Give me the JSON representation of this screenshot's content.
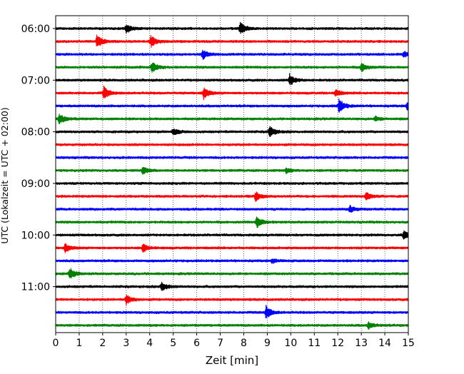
{
  "chart_data": {
    "type": "line",
    "title": "",
    "xlabel": "Zeit  [min]",
    "ylabel": "UTC (Lokalzeit = UTC + 02:00)",
    "xlim": [
      0,
      15
    ],
    "x_ticks": [
      0,
      1,
      2,
      3,
      4,
      5,
      6,
      7,
      8,
      9,
      10,
      11,
      12,
      13,
      14,
      15
    ],
    "x_tick_labels": [
      "0",
      "1",
      "2",
      "3",
      "4",
      "5",
      "6",
      "7",
      "8",
      "9",
      "10",
      "11",
      "12",
      "13",
      "14",
      "15"
    ],
    "y_tick_labels": [
      "06:00",
      "07:00",
      "08:00",
      "09:00",
      "10:00",
      "11:00"
    ],
    "vertical_grid": true,
    "grid_style": "dotted",
    "trace_minutes": 15,
    "trace_colors": [
      "#000000",
      "#ff0000",
      "#0000ff",
      "#008000"
    ],
    "traces": [
      {
        "start": "06:00",
        "events": [
          {
            "x": 3.0,
            "a": 7
          },
          {
            "x": 7.85,
            "a": 9
          }
        ]
      },
      {
        "start": "06:15",
        "events": [
          {
            "x": 1.75,
            "a": 10
          },
          {
            "x": 4.05,
            "a": 8
          }
        ]
      },
      {
        "start": "06:30",
        "events": [
          {
            "x": 6.25,
            "a": 7
          },
          {
            "x": 14.8,
            "a": 4
          }
        ]
      },
      {
        "start": "06:45",
        "events": [
          {
            "x": 4.1,
            "a": 8
          },
          {
            "x": 13.0,
            "a": 6
          }
        ]
      },
      {
        "start": "07:00",
        "events": [
          {
            "x": 9.95,
            "a": 8
          }
        ]
      },
      {
        "start": "07:15",
        "events": [
          {
            "x": 2.05,
            "a": 9
          },
          {
            "x": 6.3,
            "a": 8
          },
          {
            "x": 11.9,
            "a": 5
          }
        ]
      },
      {
        "start": "07:30",
        "events": [
          {
            "x": 12.05,
            "a": 10
          },
          {
            "x": 14.95,
            "a": 6
          }
        ]
      },
      {
        "start": "07:45",
        "events": [
          {
            "x": 0.15,
            "a": 8
          },
          {
            "x": 13.6,
            "a": 3
          }
        ]
      },
      {
        "start": "08:00",
        "events": [
          {
            "x": 5.0,
            "a": 5
          },
          {
            "x": 9.1,
            "a": 8
          }
        ]
      },
      {
        "start": "08:15",
        "events": []
      },
      {
        "start": "08:30",
        "events": []
      },
      {
        "start": "08:45",
        "events": [
          {
            "x": 3.7,
            "a": 5
          },
          {
            "x": 9.8,
            "a": 3
          }
        ]
      },
      {
        "start": "09:00",
        "events": []
      },
      {
        "start": "09:15",
        "events": [
          {
            "x": 8.5,
            "a": 6
          },
          {
            "x": 13.2,
            "a": 6
          }
        ]
      },
      {
        "start": "09:30",
        "events": [
          {
            "x": 12.5,
            "a": 5
          }
        ]
      },
      {
        "start": "09:45",
        "events": [
          {
            "x": 8.55,
            "a": 9
          }
        ]
      },
      {
        "start": "10:00",
        "events": [
          {
            "x": 14.8,
            "a": 6
          }
        ]
      },
      {
        "start": "10:15",
        "events": [
          {
            "x": 0.4,
            "a": 6
          },
          {
            "x": 3.7,
            "a": 6
          }
        ]
      },
      {
        "start": "10:30",
        "events": [
          {
            "x": 9.2,
            "a": 3
          }
        ]
      },
      {
        "start": "10:45",
        "events": [
          {
            "x": 0.6,
            "a": 8
          }
        ]
      },
      {
        "start": "11:00",
        "events": [
          {
            "x": 4.5,
            "a": 7
          }
        ]
      },
      {
        "start": "11:15",
        "events": [
          {
            "x": 3.0,
            "a": 7
          }
        ]
      },
      {
        "start": "11:30",
        "events": [
          {
            "x": 8.95,
            "a": 9
          }
        ]
      },
      {
        "start": "11:45",
        "events": [
          {
            "x": 13.3,
            "a": 5
          }
        ]
      }
    ]
  }
}
